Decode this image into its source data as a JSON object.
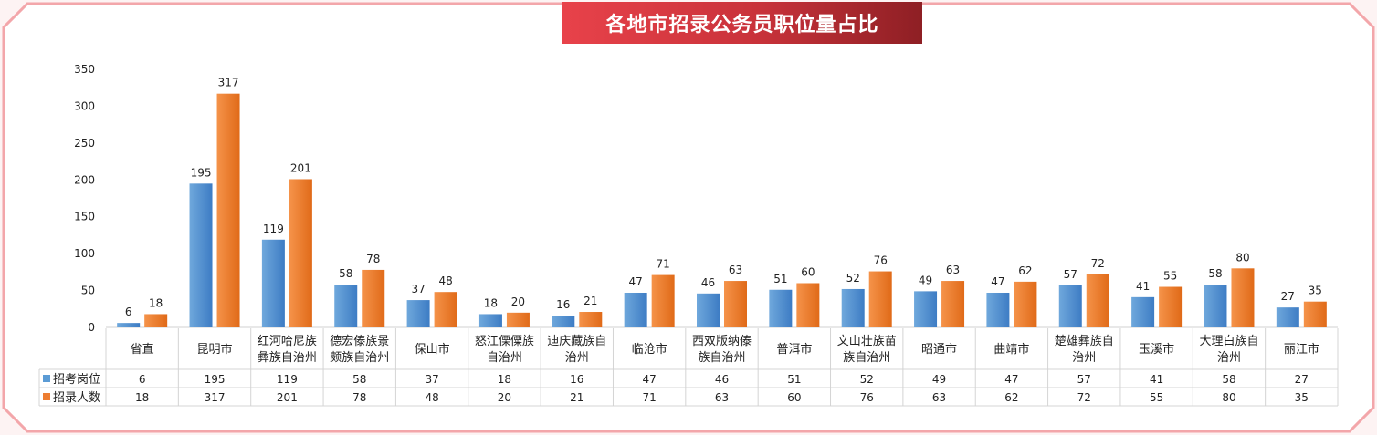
{
  "chart_data": {
    "type": "bar",
    "title": "各地市招录公务员职位量占比",
    "categories": [
      "省直",
      "昆明市",
      "红河哈尼族彝族自治州",
      "德宏傣族景颇族自治州",
      "保山市",
      "怒江傈僳族自治州",
      "迪庆藏族自治州",
      "临沧市",
      "西双版纳傣族自治州",
      "普洱市",
      "文山壮族苗族自治州",
      "昭通市",
      "曲靖市",
      "楚雄彝族自治州",
      "玉溪市",
      "大理白族自治州",
      "丽江市"
    ],
    "category_lines": [
      [
        "省直"
      ],
      [
        "昆明市"
      ],
      [
        "红河哈尼族",
        "彝族自治州"
      ],
      [
        "德宏傣族景",
        "颇族自治州"
      ],
      [
        "保山市"
      ],
      [
        "怒江傈僳族",
        "自治州"
      ],
      [
        "迪庆藏族自",
        "治州"
      ],
      [
        "临沧市"
      ],
      [
        "西双版纳傣",
        "族自治州"
      ],
      [
        "普洱市"
      ],
      [
        "文山壮族苗",
        "族自治州"
      ],
      [
        "昭通市"
      ],
      [
        "曲靖市"
      ],
      [
        "楚雄彝族自",
        "治州"
      ],
      [
        "玉溪市"
      ],
      [
        "大理白族自",
        "治州"
      ],
      [
        "丽江市"
      ]
    ],
    "series": [
      {
        "name": "招考岗位",
        "color": "#5b9bd5",
        "values": [
          6,
          195,
          119,
          58,
          37,
          18,
          16,
          47,
          46,
          51,
          52,
          49,
          47,
          57,
          41,
          58,
          27
        ]
      },
      {
        "name": "招录人数",
        "color": "#ed7d31",
        "values": [
          18,
          317,
          201,
          78,
          48,
          20,
          21,
          71,
          63,
          60,
          76,
          63,
          62,
          72,
          55,
          80,
          35
        ]
      }
    ],
    "ylim": [
      0,
      350
    ],
    "yticks": [
      0,
      50,
      100,
      150,
      200,
      250,
      300,
      350
    ],
    "grid": false,
    "legend": "data-table"
  }
}
